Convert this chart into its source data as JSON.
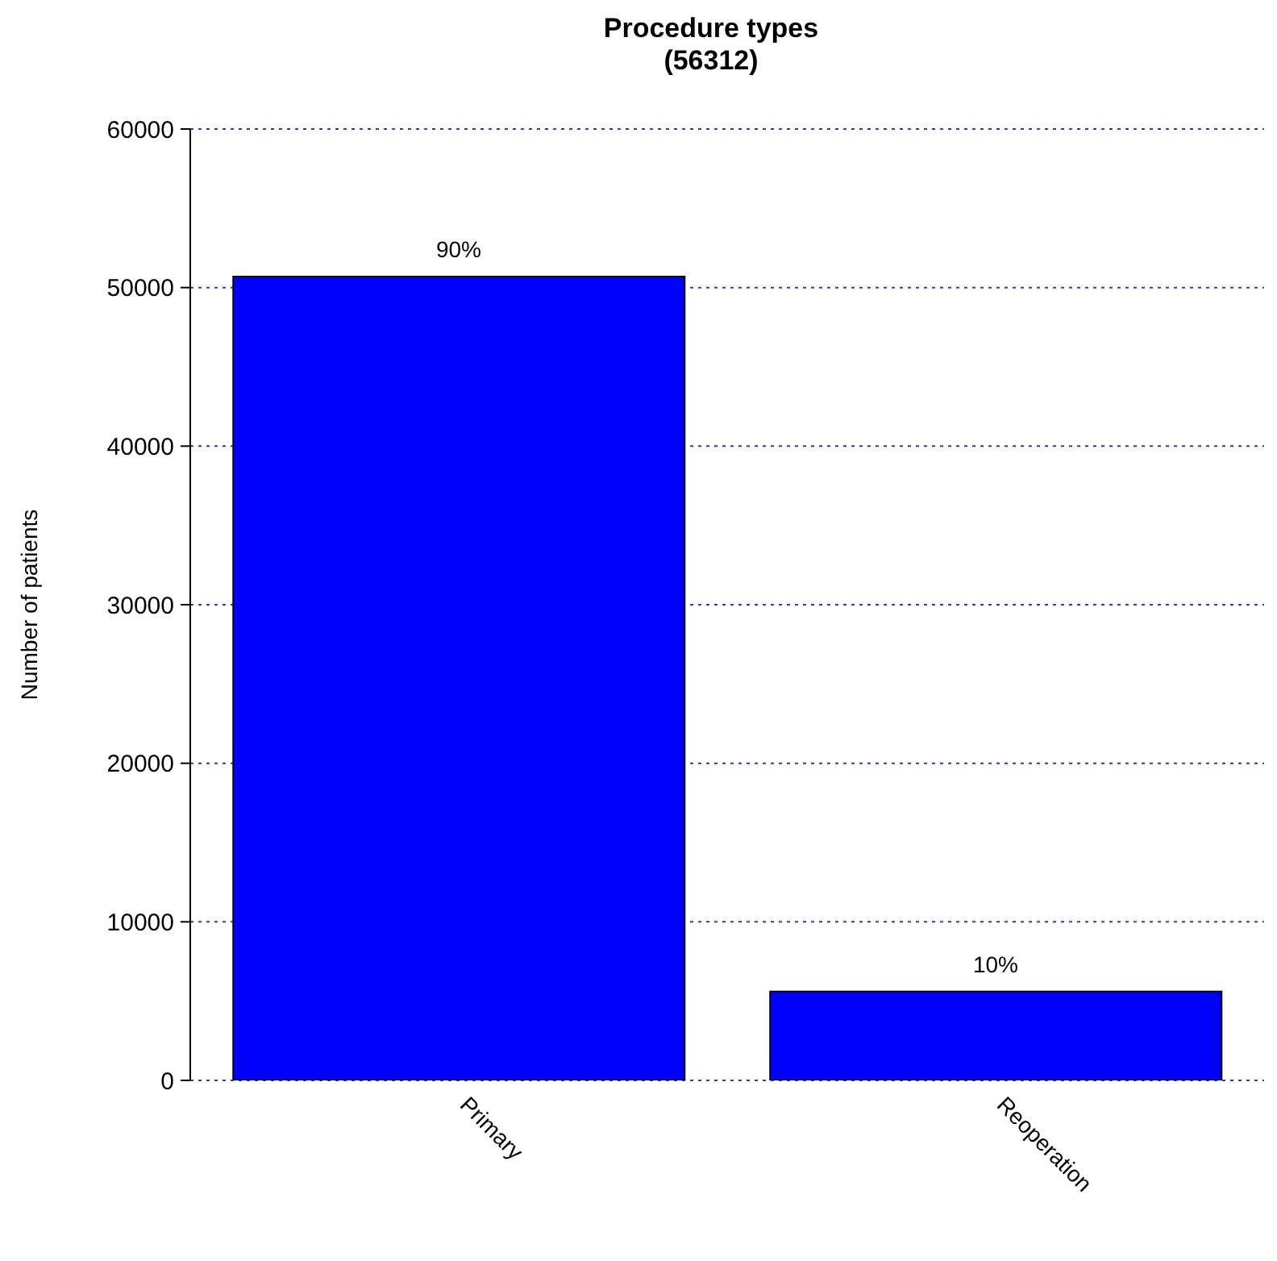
{
  "chart_data": {
    "type": "bar",
    "title": "Procedure types",
    "subtitle": "(56312)",
    "ylabel": "Number of patients",
    "categories": [
      "Primary",
      "Reoperation"
    ],
    "values": [
      50700,
      5600
    ],
    "annotations": [
      {
        "text": "90%",
        "x": "Primary",
        "y": 50700
      },
      {
        "text": "10%",
        "x": "Reoperation",
        "y": 5600
      }
    ],
    "color": "#0000ff",
    "ylim": [
      0,
      60000
    ],
    "yticks": [
      0,
      10000,
      20000,
      30000,
      40000,
      50000,
      60000
    ],
    "grid": "y"
  }
}
